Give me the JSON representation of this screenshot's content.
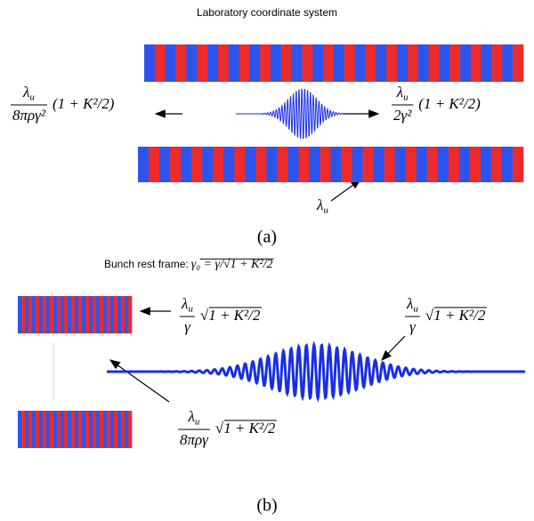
{
  "top": {
    "title": "Laboratory coordinate system",
    "left_formula": {
      "numerator": "λ",
      "numerator_sub": "u",
      "denominator": "8πργ²",
      "tail": "(1 + K²/2)"
    },
    "right_formula": {
      "numerator": "λ",
      "numerator_sub": "u",
      "denominator": "2γ²",
      "tail": "(1 + K²/2)"
    },
    "undulator_label": {
      "symbol": "λ",
      "sub": "u"
    },
    "caption": "(a)"
  },
  "bottom": {
    "title": "Bunch rest frame:",
    "title_formula": "γ₀ = γ/√1 + K²/2",
    "left_formula": {
      "numerator": "λ",
      "numerator_sub": "u",
      "denominator": "γ",
      "tail": "√1 + K²/2"
    },
    "right_formula": {
      "numerator": "λ",
      "numerator_sub": "u",
      "denominator": "γ",
      "tail": "√1 + K²/2"
    },
    "lower_formula": {
      "numerator": "λ",
      "numerator_sub": "u",
      "denominator": "8πργ",
      "tail": "√1 + K²/2"
    },
    "caption": "(b)"
  }
}
